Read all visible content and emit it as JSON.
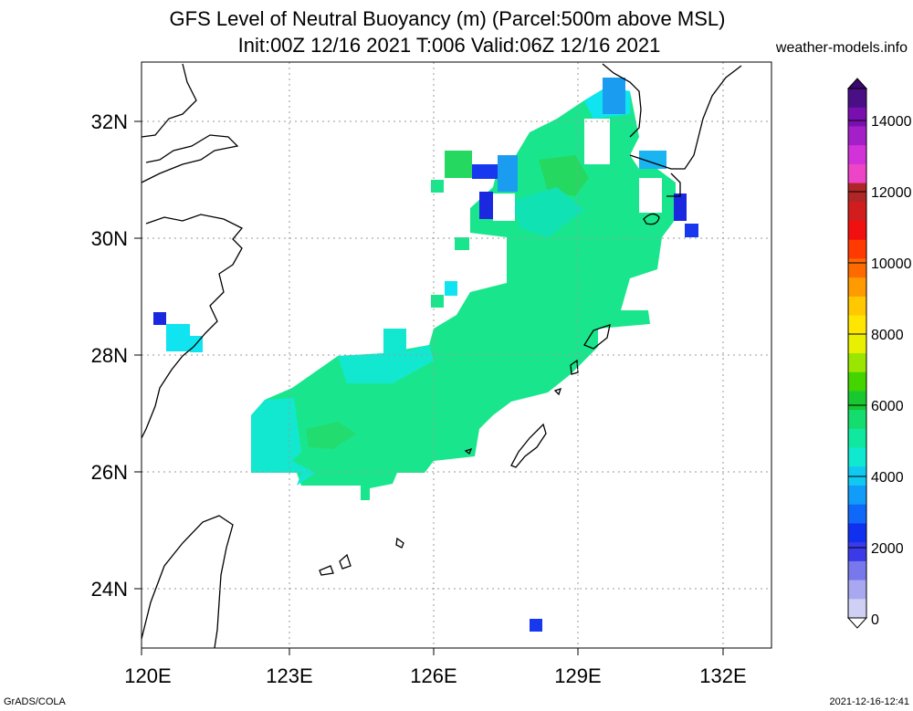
{
  "header": {
    "title_line1": "GFS Level of Neutral Buoyancy (m) (Parcel:500m above MSL)",
    "title_line2": "Init:00Z 12/16 2021 T:006 Valid:06Z 12/16 2021",
    "source": "weather-models.info"
  },
  "footer": {
    "left": "GrADS/COLA",
    "right": "2021-12-16-12:41"
  },
  "map": {
    "lon_labels": [
      "120E",
      "123E",
      "126E",
      "129E",
      "132E"
    ],
    "lat_labels": [
      "32N",
      "30N",
      "28N",
      "26N",
      "24N"
    ],
    "gridlines": "dotted"
  },
  "colorbar": {
    "labels": [
      "14000",
      "12000",
      "10000",
      "8000",
      "6000",
      "4000",
      "2000",
      "0"
    ],
    "colors": [
      "#4a0f86",
      "#7a0fb0",
      "#a51fc8",
      "#d233d8",
      "#ee44c8",
      "#b02626",
      "#d11d1d",
      "#f20f0f",
      "#ff3a00",
      "#ff6a00",
      "#ff9a00",
      "#ffc800",
      "#ffe600",
      "#e8ef00",
      "#9be600",
      "#44d400",
      "#18c830",
      "#15dc6e",
      "#10e8a0",
      "#10e8d0",
      "#10c8f0",
      "#109cf8",
      "#1068f8",
      "#1030f0",
      "#3a3ae8",
      "#7878ec",
      "#a8a8f0",
      "#d0d0f4"
    ]
  },
  "colors": {
    "field_main": "#19e68c",
    "field_teal": "#12e8c0",
    "field_cyan": "#10e4f0",
    "field_green": "#25d860",
    "field_sky": "#1ab4f0",
    "field_blue": "#1838f0"
  }
}
